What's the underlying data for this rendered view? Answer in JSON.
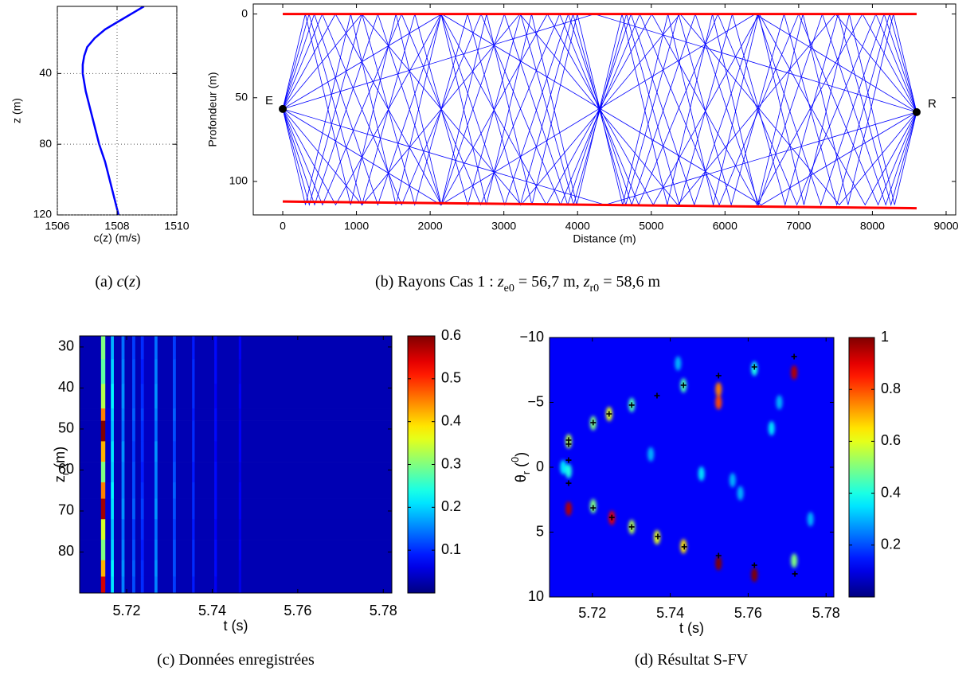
{
  "chart_data": [
    {
      "type": "line",
      "xlabel": "c(z) (m/s)",
      "ylabel": "z (m)",
      "caption": [
        {
          "text": "(a) "
        },
        {
          "math": "c"
        },
        {
          "text": "("
        },
        {
          "math": "z"
        },
        {
          "text": ")"
        }
      ],
      "xlim": [
        1506,
        1510
      ],
      "xticks": [
        1506,
        1508,
        1510
      ],
      "ylim": [
        2,
        120
      ],
      "yticks": [
        40,
        80,
        120
      ],
      "y_reversed": true,
      "grid": true,
      "series": [
        {
          "color": "#0000ff",
          "x": [
            1508.9,
            1508.6,
            1508.1,
            1507.6,
            1507.25,
            1507.0,
            1506.9,
            1506.85,
            1506.85,
            1506.95,
            1507.1,
            1507.25,
            1507.4,
            1507.6,
            1507.75,
            1507.9,
            1508.05
          ],
          "y": [
            2,
            5,
            10,
            15,
            20,
            25,
            30,
            35,
            40,
            50,
            60,
            70,
            80,
            90,
            100,
            110,
            120
          ]
        }
      ]
    },
    {
      "type": "rays",
      "xlabel": "Distance (m)",
      "ylabel": "Profondeur (m)",
      "caption": [
        {
          "text": "(b) Rayons Cas 1 : "
        },
        {
          "math": "z"
        },
        {
          "sub": "e0"
        },
        {
          "text": " = 56,7 m, "
        },
        {
          "math": "z"
        },
        {
          "sub": "r0"
        },
        {
          "text": " = 58,6 m"
        }
      ],
      "xlim": [
        -400,
        9130
      ],
      "xticks": [
        0,
        1000,
        2000,
        3000,
        4000,
        5000,
        6000,
        7000,
        8000,
        9000
      ],
      "ylim": [
        -6,
        120
      ],
      "yticks": [
        0,
        50,
        100
      ],
      "y_reversed": true,
      "boundaries": [
        {
          "color": "#ff0000",
          "x": [
            0,
            8600
          ],
          "y": [
            0,
            0
          ]
        },
        {
          "color": "#ff0000",
          "x": [
            0,
            8600
          ],
          "y": [
            112,
            116
          ]
        }
      ],
      "ray_color": "#0000ff",
      "rays": [
        {
          "x": [
            0,
            4229,
            8600
          ],
          "y": [
            56.7,
            0,
            58.6
          ]
        },
        {
          "x": [
            0,
            4373,
            8600
          ],
          "y": [
            56.7,
            114,
            58.6
          ]
        },
        {
          "x": [
            0,
            2157,
            6493,
            8600
          ],
          "y": [
            56.7,
            0,
            114,
            58.6
          ]
        },
        {
          "x": [
            0,
            2144,
            6409,
            8600
          ],
          "y": [
            56.7,
            114,
            0,
            58.6
          ]
        },
        {
          "x": [
            0,
            1074,
            3233,
            5392,
            7551,
            8600
          ],
          "y": [
            56.7,
            0,
            114,
            0,
            114,
            58.6
          ]
        },
        {
          "x": [
            0,
            1076,
            3217,
            5358,
            7499,
            8600
          ],
          "y": [
            56.7,
            114,
            0,
            114,
            0,
            58.6
          ]
        },
        {
          "x": [
            0,
            715,
            2152,
            3590,
            5027,
            6464,
            7901,
            8600
          ],
          "y": [
            56.7,
            0,
            114,
            0,
            114,
            0,
            114,
            58.6
          ]
        },
        {
          "x": [
            0,
            718,
            2148,
            3577,
            5007,
            6436,
            7865,
            8600
          ],
          "y": [
            56.7,
            114,
            0,
            114,
            0,
            114,
            0,
            58.6
          ]
        },
        {
          "x": [
            0,
            536,
            1613,
            2690,
            3768,
            4845,
            5922,
            6999,
            8077,
            8600
          ],
          "y": [
            56.7,
            0,
            114,
            0,
            114,
            0,
            114,
            0,
            114,
            58.6
          ]
        },
        {
          "x": [
            0,
            539,
            1612,
            2685,
            3757,
            4830,
            5903,
            6976,
            8048,
            8600
          ],
          "y": [
            56.7,
            114,
            0,
            114,
            0,
            114,
            0,
            114,
            0,
            58.6
          ]
        },
        {
          "x": [
            0,
            428,
            1290,
            2151,
            3013,
            3874,
            4735,
            5597,
            6458,
            7320,
            8181,
            8600
          ],
          "y": [
            56.7,
            0,
            114,
            0,
            114,
            0,
            114,
            0,
            114,
            0,
            114,
            58.6
          ]
        },
        {
          "x": [
            0,
            432,
            1290,
            2149,
            3007,
            3866,
            4725,
            5583,
            6442,
            7301,
            8159,
            8600
          ],
          "y": [
            56.7,
            114,
            0,
            114,
            0,
            114,
            0,
            114,
            0,
            114,
            0,
            58.6
          ]
        },
        {
          "x": [
            0,
            357,
            1075,
            1792,
            2510,
            3228,
            3946,
            4663,
            5381,
            6099,
            6816,
            7534,
            8252,
            8600
          ],
          "y": [
            56.7,
            0,
            114,
            0,
            114,
            0,
            114,
            0,
            114,
            0,
            114,
            0,
            114,
            58.6
          ]
        },
        {
          "x": [
            0,
            360,
            1075,
            1791,
            2507,
            3223,
            3938,
            4654,
            5370,
            6085,
            6801,
            7517,
            8233,
            8600
          ],
          "y": [
            56.7,
            114,
            0,
            114,
            0,
            114,
            0,
            114,
            0,
            114,
            0,
            114,
            0,
            58.6
          ]
        },
        {
          "x": [
            0,
            306,
            921,
            1536,
            2151,
            2766,
            3381,
            3996,
            4611,
            5226,
            5841,
            6456,
            7071,
            7686,
            8301,
            8600
          ],
          "y": [
            56.7,
            0,
            114,
            0,
            114,
            0,
            114,
            0,
            114,
            0,
            114,
            0,
            114,
            0,
            114,
            58.6
          ]
        },
        {
          "x": [
            0,
            308,
            922,
            1535,
            2149,
            2762,
            3376,
            3989,
            4603,
            5216,
            5830,
            6443,
            7057,
            7670,
            8284,
            8600
          ],
          "y": [
            56.7,
            114,
            0,
            114,
            0,
            114,
            0,
            114,
            0,
            114,
            0,
            114,
            0,
            114,
            0,
            58.6
          ]
        }
      ],
      "points": {
        "x": [
          0,
          8600
        ],
        "y": [
          56.7,
          58.6
        ],
        "labels": [
          "E",
          "R"
        ],
        "color": "#000000"
      }
    },
    {
      "type": "heatmap",
      "xlabel": "t (s)",
      "ylabel": [
        {
          "text": "z"
        },
        {
          "sub": "r"
        },
        {
          "text": " (m)"
        }
      ],
      "caption": [
        {
          "text": "(c) Données enregistrées"
        }
      ],
      "xlim": [
        5.709,
        5.782
      ],
      "xticks": [
        5.72,
        5.74,
        5.76,
        5.78
      ],
      "ylim": [
        27.3,
        90
      ],
      "yticks": [
        30,
        40,
        50,
        60,
        70,
        80
      ],
      "y_reversed": true,
      "colormap": "jet",
      "clim": [
        0,
        0.6
      ],
      "cticks": [
        0.1,
        0.2,
        0.3,
        0.4,
        0.5,
        0.6
      ],
      "x": [
        5.709,
        5.714,
        5.715,
        5.7163,
        5.717,
        5.7188,
        5.7195,
        5.7213,
        5.722,
        5.7233,
        5.724,
        5.7265,
        5.7272,
        5.7308,
        5.7315,
        5.7353,
        5.7359,
        5.7405,
        5.7411,
        5.7462,
        5.7468,
        5.782
      ],
      "y": [
        27.3,
        33,
        39,
        45,
        48,
        53,
        58,
        63,
        67,
        72,
        77,
        82,
        86,
        90
      ],
      "z": [
        [
          0.03,
          0.3,
          0.04,
          0.18,
          0.03,
          0.14,
          0.03,
          0.11,
          0.03,
          0.1,
          0.04,
          0.14,
          0.03,
          0.11,
          0.03,
          0.09,
          0.03,
          0.08,
          0.03,
          0.07,
          0.03
        ],
        [
          0.03,
          0.28,
          0.04,
          0.2,
          0.03,
          0.15,
          0.03,
          0.12,
          0.03,
          0.09,
          0.04,
          0.15,
          0.03,
          0.12,
          0.03,
          0.1,
          0.03,
          0.08,
          0.03,
          0.06,
          0.03
        ],
        [
          0.03,
          0.33,
          0.04,
          0.22,
          0.03,
          0.16,
          0.03,
          0.12,
          0.03,
          0.1,
          0.04,
          0.16,
          0.03,
          0.12,
          0.03,
          0.1,
          0.03,
          0.07,
          0.03,
          0.07,
          0.03
        ],
        [
          0.03,
          0.45,
          0.05,
          0.2,
          0.03,
          0.15,
          0.03,
          0.13,
          0.03,
          0.11,
          0.04,
          0.15,
          0.03,
          0.13,
          0.03,
          0.09,
          0.03,
          0.08,
          0.03,
          0.06,
          0.03
        ],
        [
          0.03,
          0.6,
          0.05,
          0.19,
          0.03,
          0.14,
          0.03,
          0.12,
          0.03,
          0.1,
          0.04,
          0.14,
          0.03,
          0.12,
          0.03,
          0.1,
          0.03,
          0.08,
          0.03,
          0.07,
          0.03
        ],
        [
          0.03,
          0.42,
          0.04,
          0.21,
          0.03,
          0.16,
          0.03,
          0.11,
          0.03,
          0.1,
          0.04,
          0.16,
          0.03,
          0.11,
          0.03,
          0.1,
          0.03,
          0.07,
          0.03,
          0.07,
          0.03
        ],
        [
          0.03,
          0.3,
          0.04,
          0.2,
          0.03,
          0.15,
          0.03,
          0.12,
          0.03,
          0.09,
          0.04,
          0.15,
          0.03,
          0.12,
          0.03,
          0.09,
          0.03,
          0.08,
          0.03,
          0.06,
          0.03
        ],
        [
          0.03,
          0.45,
          0.05,
          0.22,
          0.03,
          0.15,
          0.03,
          0.12,
          0.03,
          0.1,
          0.04,
          0.15,
          0.03,
          0.13,
          0.03,
          0.1,
          0.03,
          0.08,
          0.03,
          0.07,
          0.03
        ],
        [
          0.03,
          0.58,
          0.05,
          0.21,
          0.03,
          0.16,
          0.03,
          0.13,
          0.03,
          0.11,
          0.04,
          0.16,
          0.03,
          0.12,
          0.03,
          0.1,
          0.03,
          0.08,
          0.03,
          0.07,
          0.03
        ],
        [
          0.03,
          0.35,
          0.04,
          0.19,
          0.03,
          0.14,
          0.03,
          0.11,
          0.03,
          0.1,
          0.04,
          0.14,
          0.03,
          0.11,
          0.03,
          0.09,
          0.03,
          0.07,
          0.03,
          0.06,
          0.03
        ],
        [
          0.03,
          0.3,
          0.04,
          0.2,
          0.03,
          0.15,
          0.03,
          0.12,
          0.03,
          0.09,
          0.04,
          0.15,
          0.03,
          0.12,
          0.03,
          0.1,
          0.03,
          0.08,
          0.03,
          0.07,
          0.03
        ],
        [
          0.03,
          0.42,
          0.05,
          0.22,
          0.03,
          0.16,
          0.03,
          0.13,
          0.03,
          0.1,
          0.04,
          0.16,
          0.03,
          0.12,
          0.03,
          0.1,
          0.03,
          0.08,
          0.03,
          0.06,
          0.03
        ],
        [
          0.03,
          0.55,
          0.05,
          0.21,
          0.03,
          0.15,
          0.03,
          0.12,
          0.03,
          0.1,
          0.04,
          0.15,
          0.03,
          0.11,
          0.03,
          0.09,
          0.03,
          0.07,
          0.03,
          0.06,
          0.03
        ]
      ]
    },
    {
      "type": "spotmap",
      "xlabel": "t (s)",
      "ylabel": [
        {
          "text": "θ"
        },
        {
          "sub": "r"
        },
        {
          "text": " ("
        },
        {
          "sup": "0"
        },
        {
          "text": ")"
        }
      ],
      "caption": [
        {
          "text": "(d) Résultat S-FV"
        }
      ],
      "xlim": [
        5.709,
        5.782
      ],
      "xticks": [
        5.72,
        5.74,
        5.76,
        5.78
      ],
      "ylim": [
        -10,
        10
      ],
      "yticks": [
        {
          "value": -10,
          "label": "−10"
        },
        {
          "value": -5,
          "label": "−5"
        },
        0,
        5,
        10
      ],
      "y_reversed": true,
      "colormap": "jet",
      "clim": [
        0,
        1
      ],
      "cticks": [
        0.2,
        0.4,
        0.6,
        0.8,
        1
      ],
      "background": 0.12,
      "spots": {
        "x": [
          5.7139,
          5.7139,
          5.7139,
          5.7202,
          5.7202,
          5.7243,
          5.725,
          5.7301,
          5.7301,
          5.7366,
          5.7434,
          5.7434,
          5.7524,
          5.7524,
          5.7524,
          5.7616,
          5.7616,
          5.7718,
          5.7718,
          5.735,
          5.748,
          5.758,
          5.766,
          5.776,
          5.742,
          5.756,
          5.768,
          5.7125
        ],
        "y": [
          -2.0,
          3.2,
          0.3,
          -3.4,
          3.0,
          -4.1,
          3.9,
          -4.8,
          4.6,
          5.4,
          -6.3,
          6.1,
          -6.0,
          -5.0,
          7.4,
          8.3,
          -7.6,
          -7.3,
          7.2,
          -1,
          0.5,
          2,
          -3,
          4,
          -8,
          1,
          -5,
          0
        ],
        "values": [
          0.55,
          0.95,
          0.4,
          0.5,
          0.5,
          0.6,
          0.9,
          0.45,
          0.55,
          0.6,
          0.45,
          0.65,
          0.75,
          0.8,
          1.0,
          1.0,
          0.4,
          0.95,
          0.5,
          0.3,
          0.35,
          0.3,
          0.35,
          0.3,
          0.3,
          0.3,
          0.3,
          0.35
        ]
      },
      "markers": {
        "color": "#000000",
        "x": [
          5.7139,
          5.7139,
          5.7139,
          5.7139,
          5.7202,
          5.7243,
          5.7301,
          5.7366,
          5.7434,
          5.7524,
          5.7616,
          5.7718,
          5.7202,
          5.725,
          5.7301,
          5.7368,
          5.7436,
          5.7524,
          5.7616,
          5.772
        ],
        "y": [
          -2.09,
          -1.78,
          -0.55,
          1.23,
          -3.44,
          -4.11,
          -4.79,
          -5.52,
          -6.32,
          -7.06,
          -7.73,
          -8.53,
          3.13,
          3.87,
          4.6,
          5.34,
          6.13,
          6.81,
          7.55,
          8.22
        ]
      }
    }
  ]
}
